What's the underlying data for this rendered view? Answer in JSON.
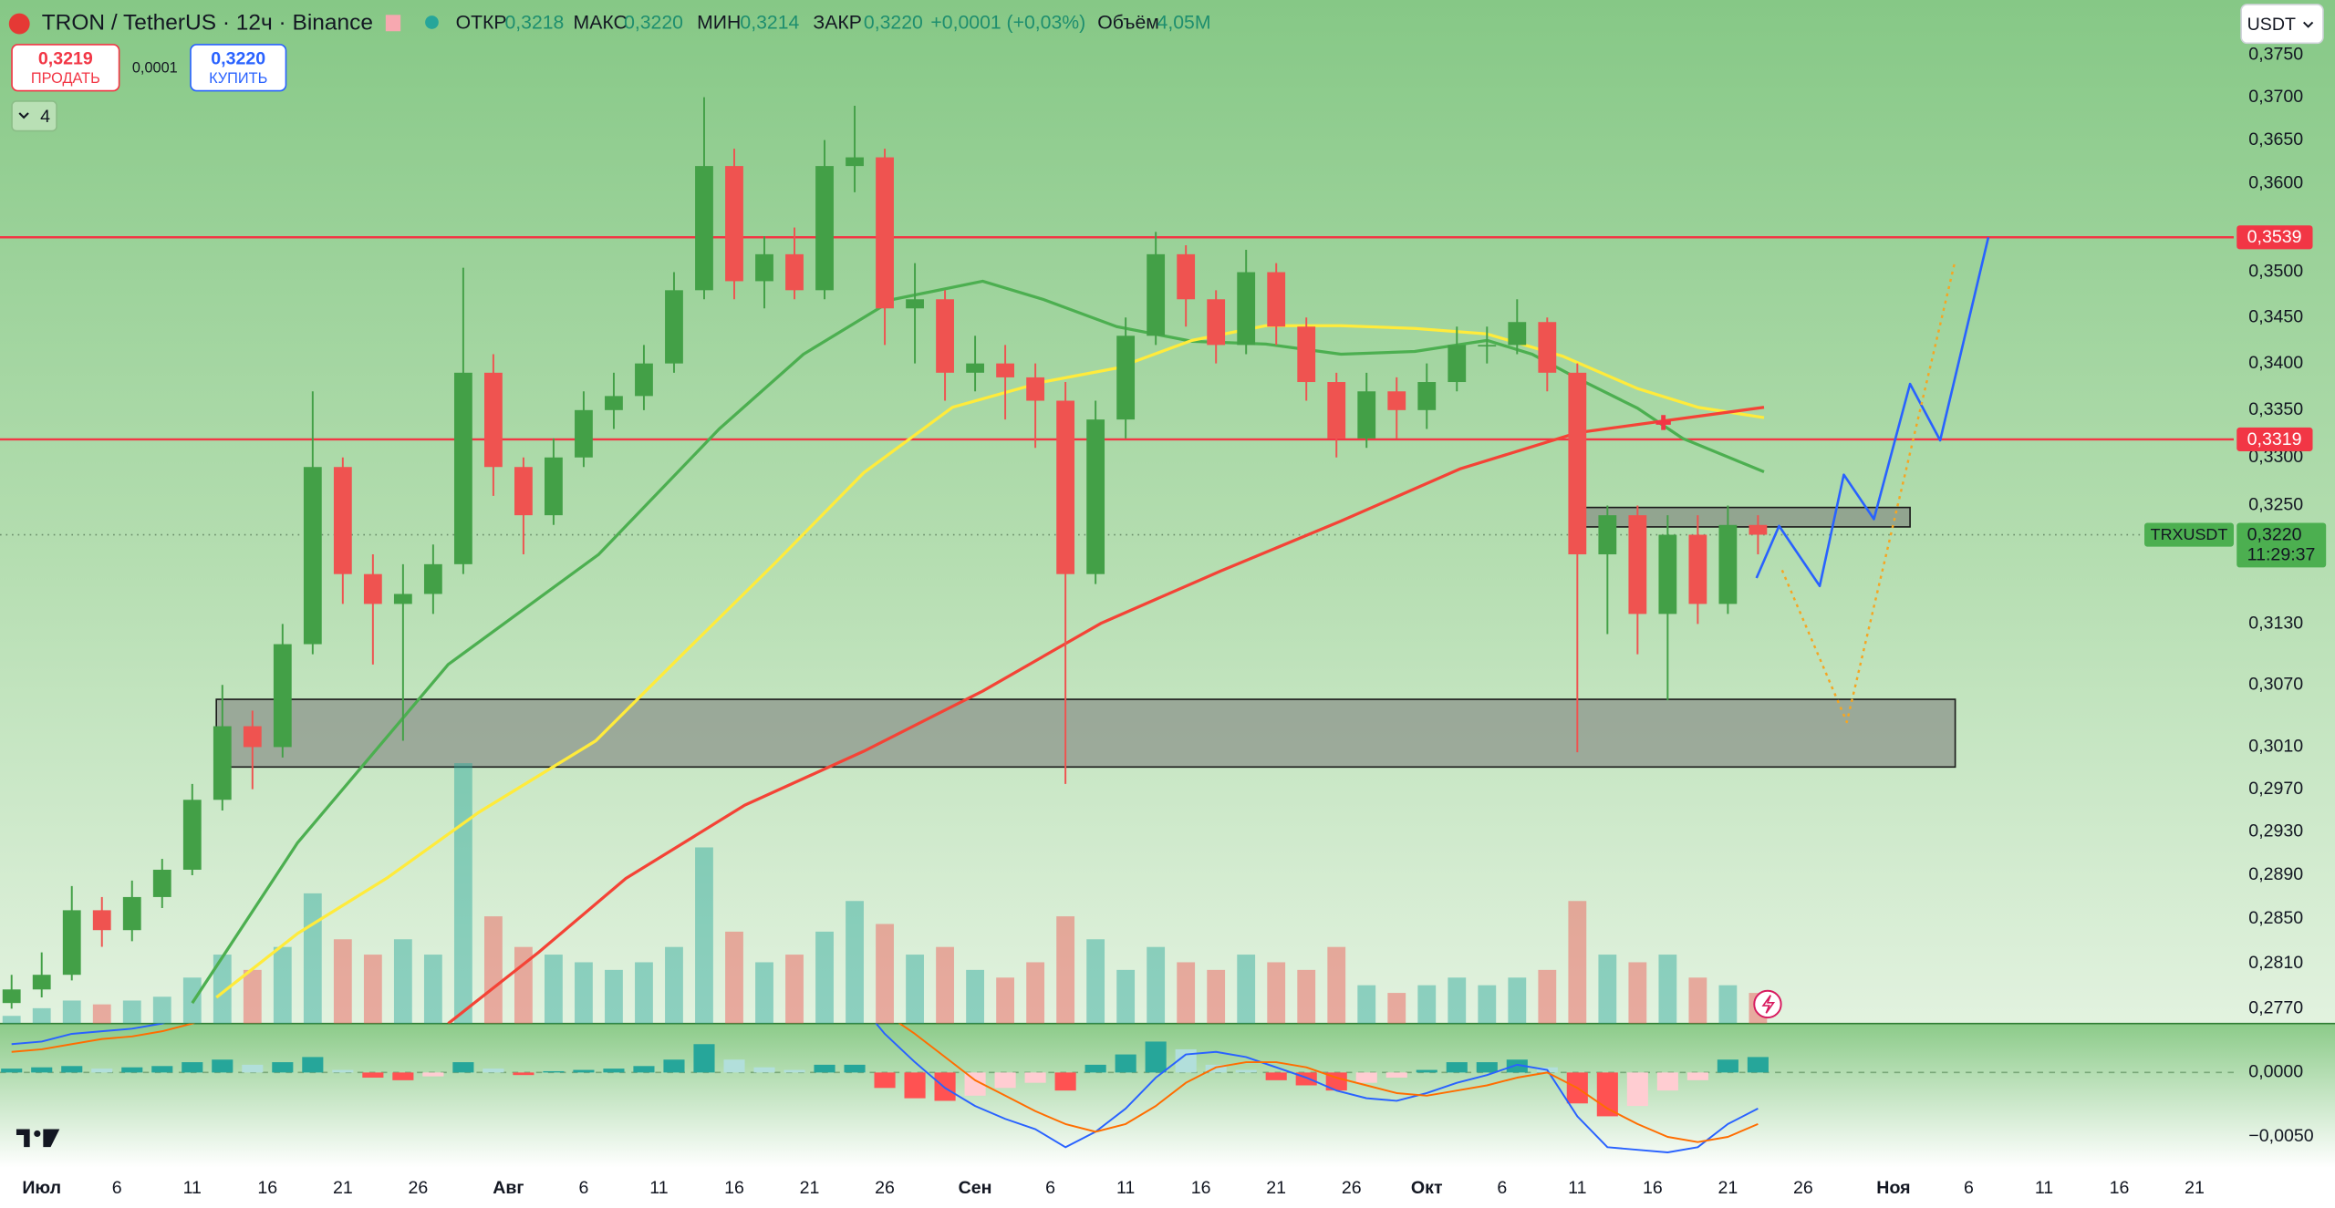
{
  "header": {
    "symbol": "TRON / TetherUS · 12ч · Binance",
    "open_label": "ОТКР",
    "open": "0,3218",
    "high_label": "МАКС",
    "high": "0,3220",
    "low_label": "МИН",
    "low": "0,3214",
    "close_label": "ЗАКР",
    "close": "0,3220",
    "change": "+0,0001 (+0,03%)",
    "volume_label": "Объём",
    "volume": "4,05M"
  },
  "trade": {
    "sell_price": "0,3219",
    "sell_label": "ПРОДАТЬ",
    "spread": "0,0001",
    "buy_price": "0,3220",
    "buy_label": "КУПИТЬ"
  },
  "indicators_count": "4",
  "currency": "USDT",
  "chart_data": {
    "type": "candlestick",
    "log": true,
    "xlim": [
      -2.77,
      145.6
    ],
    "ylim": [
      0.2757,
      0.3816
    ],
    "up_color": "#43a047",
    "down_color": "#ef5350",
    "xticks": [
      {
        "value": 0,
        "label": "Июл"
      },
      {
        "value": 5,
        "label": "6"
      },
      {
        "value": 10,
        "label": "11"
      },
      {
        "value": 15,
        "label": "16"
      },
      {
        "value": 20,
        "label": "21"
      },
      {
        "value": 25,
        "label": "26"
      },
      {
        "value": 31,
        "label": "Авг"
      },
      {
        "value": 36,
        "label": "6"
      },
      {
        "value": 41,
        "label": "11"
      },
      {
        "value": 46,
        "label": "16"
      },
      {
        "value": 51,
        "label": "21"
      },
      {
        "value": 56,
        "label": "26"
      },
      {
        "value": 62,
        "label": "Сен"
      },
      {
        "value": 67,
        "label": "6"
      },
      {
        "value": 72,
        "label": "11"
      },
      {
        "value": 77,
        "label": "16"
      },
      {
        "value": 82,
        "label": "21"
      },
      {
        "value": 87,
        "label": "26"
      },
      {
        "value": 92,
        "label": "Окт"
      },
      {
        "value": 97,
        "label": "6"
      },
      {
        "value": 102,
        "label": "11"
      },
      {
        "value": 107,
        "label": "16"
      },
      {
        "value": 112,
        "label": "21"
      },
      {
        "value": 117,
        "label": "26"
      },
      {
        "value": 123,
        "label": "Ноя"
      },
      {
        "value": 128,
        "label": "6"
      },
      {
        "value": 133,
        "label": "11"
      },
      {
        "value": 138,
        "label": "16"
      },
      {
        "value": 143,
        "label": "21"
      }
    ],
    "yticks": [
      {
        "value": 0.375,
        "label": "0,3750"
      },
      {
        "value": 0.37,
        "label": "0,3700"
      },
      {
        "value": 0.365,
        "label": "0,3650"
      },
      {
        "value": 0.36,
        "label": "0,3600"
      },
      {
        "value": 0.35,
        "label": "0,3500"
      },
      {
        "value": 0.345,
        "label": "0,3450"
      },
      {
        "value": 0.34,
        "label": "0,3400"
      },
      {
        "value": 0.335,
        "label": "0,3350"
      },
      {
        "value": 0.33,
        "label": "0,3300"
      },
      {
        "value": 0.325,
        "label": "0,3250"
      },
      {
        "value": 0.313,
        "label": "0,3130"
      },
      {
        "value": 0.307,
        "label": "0,3070"
      },
      {
        "value": 0.301,
        "label": "0,3010"
      },
      {
        "value": 0.297,
        "label": "0,2970"
      },
      {
        "value": 0.293,
        "label": "0,2930"
      },
      {
        "value": 0.289,
        "label": "0,2890"
      },
      {
        "value": 0.285,
        "label": "0,2850"
      },
      {
        "value": 0.281,
        "label": "0,2810"
      },
      {
        "value": 0.277,
        "label": "0,2770"
      }
    ],
    "x": [
      -2,
      0,
      2,
      4,
      6,
      8,
      10,
      12,
      14,
      16,
      18,
      20,
      22,
      24,
      26,
      28,
      30,
      32,
      34,
      36,
      38,
      40,
      42,
      44,
      46,
      48,
      50,
      52,
      54,
      56,
      58,
      60,
      62,
      64,
      66,
      68,
      70,
      72,
      74,
      76,
      78,
      80,
      82,
      84,
      86,
      88,
      90,
      92,
      94,
      96,
      98,
      100,
      102,
      104,
      106,
      108,
      110,
      112,
      114
    ],
    "candles": [
      [
        0.2775,
        0.28,
        0.277,
        0.2787
      ],
      [
        0.2787,
        0.282,
        0.278,
        0.28
      ],
      [
        0.28,
        0.288,
        0.2795,
        0.2858
      ],
      [
        0.2858,
        0.287,
        0.2825,
        0.284
      ],
      [
        0.284,
        0.2885,
        0.283,
        0.287
      ],
      [
        0.287,
        0.2905,
        0.286,
        0.2895
      ],
      [
        0.2895,
        0.2975,
        0.289,
        0.296
      ],
      [
        0.296,
        0.307,
        0.295,
        0.303
      ],
      [
        0.303,
        0.3045,
        0.297,
        0.301
      ],
      [
        0.301,
        0.313,
        0.3,
        0.311
      ],
      [
        0.311,
        0.337,
        0.31,
        0.329
      ],
      [
        0.329,
        0.33,
        0.315,
        0.318
      ],
      [
        0.318,
        0.32,
        0.309,
        0.315
      ],
      [
        0.315,
        0.319,
        0.3016,
        0.316
      ],
      [
        0.316,
        0.321,
        0.314,
        0.319
      ],
      [
        0.319,
        0.3505,
        0.318,
        0.339
      ],
      [
        0.339,
        0.341,
        0.326,
        0.329
      ],
      [
        0.329,
        0.33,
        0.32,
        0.324
      ],
      [
        0.324,
        0.332,
        0.323,
        0.33
      ],
      [
        0.33,
        0.337,
        0.329,
        0.335
      ],
      [
        0.335,
        0.339,
        0.333,
        0.3365
      ],
      [
        0.3365,
        0.342,
        0.335,
        0.34
      ],
      [
        0.34,
        0.35,
        0.339,
        0.348
      ],
      [
        0.348,
        0.37,
        0.347,
        0.362
      ],
      [
        0.362,
        0.364,
        0.347,
        0.349
      ],
      [
        0.349,
        0.354,
        0.346,
        0.352
      ],
      [
        0.352,
        0.355,
        0.347,
        0.348
      ],
      [
        0.348,
        0.365,
        0.347,
        0.362
      ],
      [
        0.362,
        0.369,
        0.359,
        0.363
      ],
      [
        0.363,
        0.364,
        0.342,
        0.346
      ],
      [
        0.346,
        0.351,
        0.34,
        0.347
      ],
      [
        0.347,
        0.348,
        0.336,
        0.339
      ],
      [
        0.339,
        0.343,
        0.337,
        0.34
      ],
      [
        0.34,
        0.342,
        0.334,
        0.3385
      ],
      [
        0.3385,
        0.34,
        0.331,
        0.336
      ],
      [
        0.336,
        0.338,
        0.2975,
        0.318
      ],
      [
        0.318,
        0.336,
        0.317,
        0.334
      ],
      [
        0.334,
        0.345,
        0.332,
        0.343
      ],
      [
        0.343,
        0.3545,
        0.342,
        0.352
      ],
      [
        0.352,
        0.353,
        0.344,
        0.347
      ],
      [
        0.347,
        0.348,
        0.34,
        0.342
      ],
      [
        0.342,
        0.3525,
        0.341,
        0.35
      ],
      [
        0.35,
        0.351,
        0.342,
        0.344
      ],
      [
        0.344,
        0.345,
        0.336,
        0.338
      ],
      [
        0.338,
        0.339,
        0.33,
        0.332
      ],
      [
        0.332,
        0.339,
        0.331,
        0.337
      ],
      [
        0.337,
        0.3385,
        0.332,
        0.335
      ],
      [
        0.335,
        0.34,
        0.333,
        0.338
      ],
      [
        0.338,
        0.344,
        0.337,
        0.342
      ],
      [
        0.342,
        0.344,
        0.34,
        0.342
      ],
      [
        0.342,
        0.347,
        0.341,
        0.3445
      ],
      [
        0.3445,
        0.345,
        0.337,
        0.339
      ],
      [
        0.339,
        0.34,
        0.3005,
        0.32
      ],
      [
        0.32,
        0.325,
        0.312,
        0.324
      ],
      [
        0.324,
        0.325,
        0.31,
        0.314
      ],
      [
        0.314,
        0.324,
        0.3055,
        0.322
      ],
      [
        0.322,
        0.324,
        0.313,
        0.315
      ],
      [
        0.315,
        0.325,
        0.314,
        0.323
      ],
      [
        0.323,
        0.324,
        0.32,
        0.322
      ]
    ],
    "volume": [
      10,
      20,
      30,
      25,
      30,
      35,
      60,
      90,
      70,
      100,
      170,
      110,
      90,
      110,
      90,
      340,
      140,
      100,
      90,
      80,
      70,
      80,
      100,
      230,
      120,
      80,
      90,
      120,
      160,
      130,
      90,
      100,
      70,
      60,
      80,
      140,
      110,
      70,
      100,
      80,
      70,
      90,
      80,
      70,
      100,
      50,
      40,
      50,
      60,
      50,
      60,
      70,
      160,
      90,
      80,
      90,
      60,
      50,
      40
    ],
    "moving_averages": [
      {
        "color": "#4caf50",
        "x": [
          10,
          17,
          27,
          37,
          45,
          50.6,
          56.6,
          62.5,
          66.5,
          71.4,
          76.4,
          81.3,
          86.3,
          91.2,
          96,
          99,
          102,
          106,
          109,
          114.4
        ],
        "values": [
          0.2775,
          0.292,
          0.309,
          0.32,
          0.333,
          0.341,
          0.347,
          0.349,
          0.347,
          0.344,
          0.3424,
          0.3421,
          0.341,
          0.3413,
          0.3425,
          0.341,
          0.3384,
          0.3352,
          0.332,
          0.3285
        ]
      },
      {
        "color": "#ffeb3b",
        "x": [
          11.6,
          17,
          23,
          29,
          36.8,
          42.7,
          48.7,
          54.6,
          60.5,
          66.5,
          71.4,
          76.4,
          81.3,
          86.3,
          91.2,
          96,
          101,
          106,
          110,
          114.4
        ],
        "values": [
          0.278,
          0.2837,
          0.2888,
          0.2948,
          0.3016,
          0.3102,
          0.3191,
          0.3284,
          0.3353,
          0.338,
          0.3395,
          0.3425,
          0.3441,
          0.3441,
          0.3438,
          0.3432,
          0.3408,
          0.3373,
          0.3353,
          0.3342
        ]
      },
      {
        "color": "#f44336",
        "x": [
          27,
          33,
          38.8,
          46.7,
          54.6,
          62.5,
          70.4,
          78.3,
          86.3,
          94.2,
          102,
          108,
          114.4
        ],
        "values": [
          0.2757,
          0.282,
          0.2887,
          0.2955,
          0.3006,
          0.3064,
          0.3131,
          0.3183,
          0.3234,
          0.3288,
          0.3326,
          0.3339,
          0.3353
        ]
      }
    ],
    "projections": [
      {
        "color": "#2962ff",
        "dash": false,
        "x": [
          113.9,
          115.4,
          118.1,
          119.7,
          121.7,
          124.1,
          126.1,
          129.3
        ],
        "values": [
          0.3176,
          0.3229,
          0.3168,
          0.3282,
          0.3236,
          0.3378,
          0.3318,
          0.3539
        ]
      },
      {
        "color": "#f5a623",
        "dash": true,
        "x": [
          115.6,
          119.9,
          127.1
        ],
        "values": [
          0.3184,
          0.3034,
          0.3513
        ]
      }
    ],
    "zones": [
      {
        "x0": 11.6,
        "x1": 127.1,
        "y0": 0.2991,
        "y1": 0.3056
      },
      {
        "x0": 102.1,
        "x1": 124.1,
        "y0": 0.3228,
        "y1": 0.3248
      }
    ],
    "hlines": [
      {
        "value": 0.3539,
        "label": "0,3539",
        "color": "#f23645"
      },
      {
        "value": 0.3319,
        "label": "0,3319",
        "color": "#f23645"
      }
    ],
    "price_line": {
      "value": 0.322,
      "label": "0,3220",
      "symbol": "TRXUSDT",
      "countdown": "11:29:37",
      "color": "#4caf50"
    },
    "macd": {
      "ylim": [
        -0.0074,
        0.0038
      ],
      "yticks": [
        {
          "value": 0,
          "label": "0,0000"
        },
        {
          "value": -0.005,
          "label": "−0,0050"
        }
      ],
      "line_color": "#2962ff",
      "signal_color": "#ff6d00",
      "histogram": [
        0.0003,
        0.0004,
        0.0005,
        0.0003,
        0.0004,
        0.0005,
        0.0008,
        0.001,
        0.0006,
        0.0008,
        0.0012,
        0.0002,
        -0.0004,
        -0.0006,
        -0.0003,
        0.0008,
        0.0003,
        -0.0002,
        0.0001,
        0.0002,
        0.0003,
        0.0005,
        0.001,
        0.0022,
        0.001,
        0.0004,
        0.0002,
        0.0006,
        0.0006,
        -0.0012,
        -0.002,
        -0.0022,
        -0.0018,
        -0.0012,
        -0.0008,
        -0.0014,
        0.0006,
        0.0014,
        0.0024,
        0.0018,
        0.0006,
        0.0002,
        -0.0006,
        -0.001,
        -0.0014,
        -0.0008,
        -0.0004,
        0.0002,
        0.0008,
        0.0008,
        0.001,
        0.0004,
        -0.0024,
        -0.0034,
        -0.0026,
        -0.0014,
        -0.0006,
        0.001,
        0.0012
      ],
      "line": [
        0.0022,
        0.0024,
        0.003,
        0.0032,
        0.0034,
        0.0038,
        0.0046,
        0.0056,
        0.006,
        0.0064,
        0.008,
        0.0078,
        0.0068,
        0.0058,
        0.0052,
        0.0068,
        0.0066,
        0.0048,
        0.004,
        0.004,
        0.0044,
        0.0048,
        0.0058,
        0.008,
        0.0074,
        0.0066,
        0.0058,
        0.0062,
        0.0058,
        0.003,
        0.0008,
        -0.0012,
        -0.0026,
        -0.0036,
        -0.0044,
        -0.0058,
        -0.0046,
        -0.0028,
        -0.0004,
        0.0014,
        0.0016,
        0.0012,
        0.0004,
        -0.0004,
        -0.0014,
        -0.002,
        -0.0022,
        -0.0016,
        -0.0008,
        -0.0002,
        0.0006,
        0.0002,
        -0.0034,
        -0.0058,
        -0.006,
        -0.0062,
        -0.0058,
        -0.004,
        -0.0028
      ],
      "signal": [
        0.0016,
        0.0018,
        0.0022,
        0.0026,
        0.0028,
        0.0032,
        0.0038,
        0.0046,
        0.0052,
        0.0058,
        0.0066,
        0.0072,
        0.007,
        0.0066,
        0.006,
        0.0062,
        0.0064,
        0.0058,
        0.005,
        0.0046,
        0.0044,
        0.0046,
        0.005,
        0.006,
        0.0066,
        0.0066,
        0.0062,
        0.006,
        0.0058,
        0.0046,
        0.003,
        0.0012,
        -0.0006,
        -0.0018,
        -0.003,
        -0.004,
        -0.0046,
        -0.004,
        -0.0026,
        -0.0008,
        0.0004,
        0.0008,
        0.0008,
        0.0004,
        -0.0004,
        -0.001,
        -0.0016,
        -0.0018,
        -0.0014,
        -0.001,
        -0.0004,
        0.0,
        -0.0012,
        -0.0028,
        -0.004,
        -0.005,
        -0.0054,
        -0.005,
        -0.004
      ]
    }
  }
}
